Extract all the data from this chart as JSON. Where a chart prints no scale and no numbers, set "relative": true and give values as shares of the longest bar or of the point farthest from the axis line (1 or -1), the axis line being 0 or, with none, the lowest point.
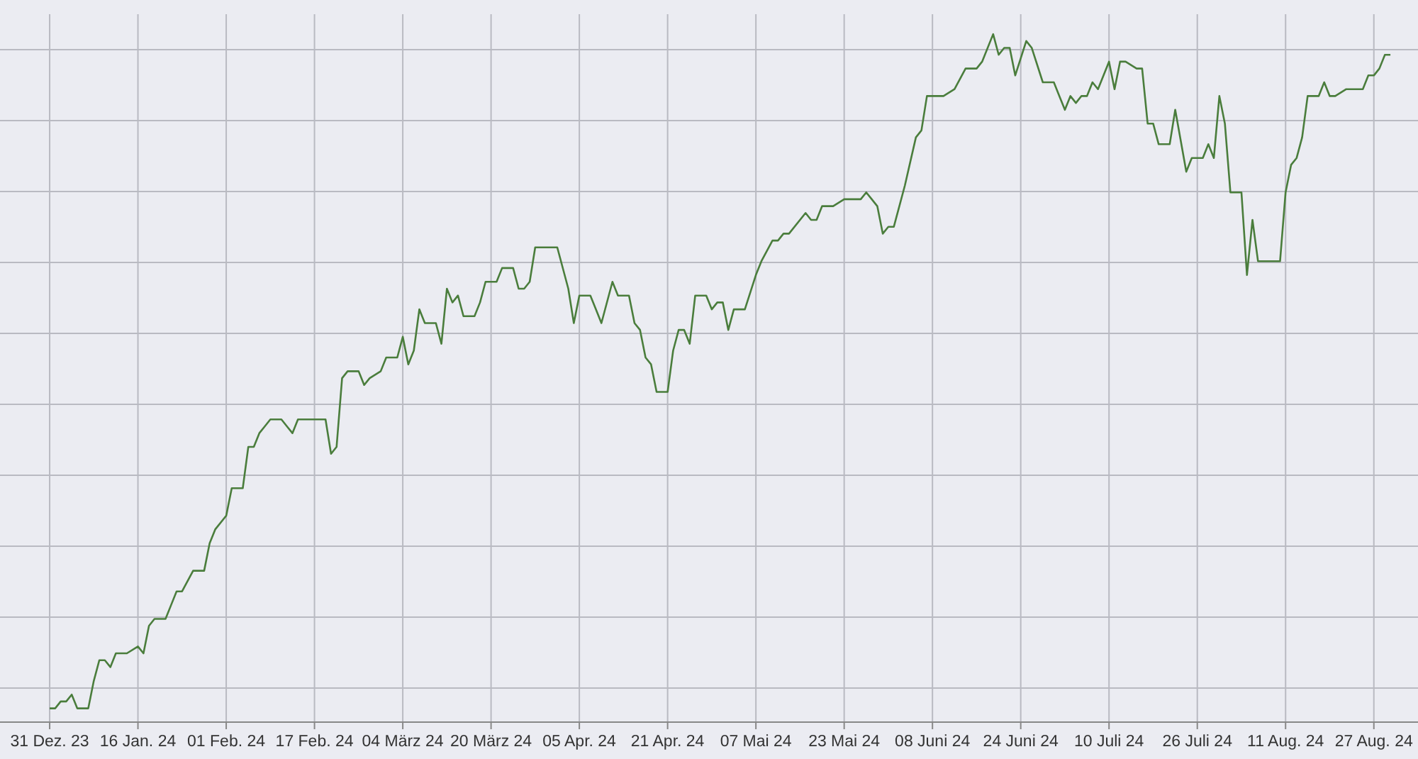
{
  "chart_data": {
    "type": "line",
    "relative": true,
    "grid": true,
    "marker": "none",
    "line_style": "solid",
    "xlim": [
      "2023-12-22",
      "2024-09-04"
    ],
    "xticks": [
      {
        "value": "2023-12-31",
        "label": "31 Dez. 23"
      },
      {
        "value": "2024-01-16",
        "label": "16 Jan. 24"
      },
      {
        "value": "2024-02-01",
        "label": "01 Feb. 24"
      },
      {
        "value": "2024-02-17",
        "label": "17 Feb. 24"
      },
      {
        "value": "2024-03-04",
        "label": "04 März 24"
      },
      {
        "value": "2024-03-20",
        "label": "20 März 24"
      },
      {
        "value": "2024-04-05",
        "label": "05 Apr. 24"
      },
      {
        "value": "2024-04-21",
        "label": "21 Apr. 24"
      },
      {
        "value": "2024-05-07",
        "label": "07 Mai 24"
      },
      {
        "value": "2024-05-23",
        "label": "23 Mai 24"
      },
      {
        "value": "2024-06-08",
        "label": "08 Juni 24"
      },
      {
        "value": "2024-06-24",
        "label": "24 Juni 24"
      },
      {
        "value": "2024-07-10",
        "label": "10 Juli 24"
      },
      {
        "value": "2024-07-26",
        "label": "26 Juli 24"
      },
      {
        "value": "2024-08-11",
        "label": "11 Aug. 24"
      },
      {
        "value": "2024-08-27",
        "label": "27 Aug. 24"
      }
    ],
    "x": [
      "2023-12-31",
      "2024-01-01",
      "2024-01-02",
      "2024-01-03",
      "2024-01-04",
      "2024-01-05",
      "2024-01-07",
      "2024-01-08",
      "2024-01-09",
      "2024-01-10",
      "2024-01-11",
      "2024-01-12",
      "2024-01-14",
      "2024-01-16",
      "2024-01-17",
      "2024-01-18",
      "2024-01-19",
      "2024-01-21",
      "2024-01-22",
      "2024-01-23",
      "2024-01-24",
      "2024-01-26",
      "2024-01-28",
      "2024-01-29",
      "2024-01-30",
      "2024-02-01",
      "2024-02-02",
      "2024-02-04",
      "2024-02-05",
      "2024-02-06",
      "2024-02-07",
      "2024-02-08",
      "2024-02-09",
      "2024-02-11",
      "2024-02-12",
      "2024-02-13",
      "2024-02-14",
      "2024-02-15",
      "2024-02-16",
      "2024-02-19",
      "2024-02-20",
      "2024-02-21",
      "2024-02-22",
      "2024-02-23",
      "2024-02-25",
      "2024-02-26",
      "2024-02-27",
      "2024-02-29",
      "2024-03-01",
      "2024-03-03",
      "2024-03-04",
      "2024-03-05",
      "2024-03-06",
      "2024-03-07",
      "2024-03-08",
      "2024-03-10",
      "2024-03-11",
      "2024-03-12",
      "2024-03-13",
      "2024-03-14",
      "2024-03-15",
      "2024-03-17",
      "2024-03-18",
      "2024-03-19",
      "2024-03-21",
      "2024-03-22",
      "2024-03-24",
      "2024-03-25",
      "2024-03-26",
      "2024-03-27",
      "2024-03-28",
      "2024-04-01",
      "2024-04-03",
      "2024-04-04",
      "2024-04-05",
      "2024-04-07",
      "2024-04-08",
      "2024-04-09",
      "2024-04-11",
      "2024-04-12",
      "2024-04-14",
      "2024-04-15",
      "2024-04-16",
      "2024-04-17",
      "2024-04-18",
      "2024-04-19",
      "2024-04-21",
      "2024-04-22",
      "2024-04-23",
      "2024-04-24",
      "2024-04-25",
      "2024-04-26",
      "2024-04-28",
      "2024-04-29",
      "2024-04-30",
      "2024-05-01",
      "2024-05-02",
      "2024-05-03",
      "2024-05-05",
      "2024-05-07",
      "2024-05-08",
      "2024-05-10",
      "2024-05-11",
      "2024-05-12",
      "2024-05-13",
      "2024-05-16",
      "2024-05-17",
      "2024-05-18",
      "2024-05-19",
      "2024-05-21",
      "2024-05-23",
      "2024-05-24",
      "2024-05-26",
      "2024-05-27",
      "2024-05-28",
      "2024-05-29",
      "2024-05-30",
      "2024-05-31",
      "2024-06-01",
      "2024-06-03",
      "2024-06-05",
      "2024-06-06",
      "2024-06-07",
      "2024-06-10",
      "2024-06-12",
      "2024-06-14",
      "2024-06-16",
      "2024-06-17",
      "2024-06-19",
      "2024-06-20",
      "2024-06-21",
      "2024-06-22",
      "2024-06-23",
      "2024-06-25",
      "2024-06-26",
      "2024-06-28",
      "2024-06-30",
      "2024-07-01",
      "2024-07-02",
      "2024-07-03",
      "2024-07-04",
      "2024-07-05",
      "2024-07-06",
      "2024-07-07",
      "2024-07-08",
      "2024-07-10",
      "2024-07-11",
      "2024-07-12",
      "2024-07-13",
      "2024-07-15",
      "2024-07-16",
      "2024-07-17",
      "2024-07-18",
      "2024-07-19",
      "2024-07-21",
      "2024-07-22",
      "2024-07-24",
      "2024-07-25",
      "2024-07-27",
      "2024-07-28",
      "2024-07-29",
      "2024-07-30",
      "2024-07-31",
      "2024-08-01",
      "2024-08-03",
      "2024-08-04",
      "2024-08-05",
      "2024-08-06",
      "2024-08-10",
      "2024-08-11",
      "2024-08-12",
      "2024-08-13",
      "2024-08-14",
      "2024-08-15",
      "2024-08-17",
      "2024-08-18",
      "2024-08-19",
      "2024-08-20",
      "2024-08-22",
      "2024-08-23",
      "2024-08-25",
      "2024-08-26",
      "2024-08-27",
      "2024-08-28",
      "2024-08-29",
      "2024-08-30"
    ],
    "series": [
      {
        "color": "#4a7d3c",
        "values": [
          0.02,
          0.02,
          0.03,
          0.03,
          0.04,
          0.02,
          0.02,
          0.06,
          0.09,
          0.09,
          0.08,
          0.1,
          0.1,
          0.11,
          0.1,
          0.14,
          0.15,
          0.15,
          0.17,
          0.19,
          0.19,
          0.22,
          0.22,
          0.26,
          0.28,
          0.3,
          0.34,
          0.34,
          0.4,
          0.4,
          0.42,
          0.43,
          0.44,
          0.44,
          0.43,
          0.42,
          0.44,
          0.44,
          0.44,
          0.44,
          0.39,
          0.4,
          0.5,
          0.51,
          0.51,
          0.49,
          0.5,
          0.51,
          0.53,
          0.53,
          0.56,
          0.52,
          0.54,
          0.6,
          0.58,
          0.58,
          0.55,
          0.63,
          0.61,
          0.62,
          0.59,
          0.59,
          0.61,
          0.64,
          0.64,
          0.66,
          0.66,
          0.63,
          0.63,
          0.64,
          0.69,
          0.69,
          0.63,
          0.58,
          0.62,
          0.62,
          0.6,
          0.58,
          0.64,
          0.62,
          0.62,
          0.58,
          0.57,
          0.53,
          0.52,
          0.48,
          0.48,
          0.54,
          0.57,
          0.57,
          0.55,
          0.62,
          0.62,
          0.6,
          0.61,
          0.61,
          0.57,
          0.6,
          0.6,
          0.65,
          0.67,
          0.7,
          0.7,
          0.71,
          0.71,
          0.74,
          0.73,
          0.73,
          0.75,
          0.75,
          0.76,
          0.76,
          0.76,
          0.77,
          0.76,
          0.75,
          0.71,
          0.72,
          0.72,
          0.78,
          0.85,
          0.86,
          0.91,
          0.91,
          0.92,
          0.95,
          0.95,
          0.96,
          1,
          0.97,
          0.98,
          0.98,
          0.94,
          0.99,
          0.98,
          0.93,
          0.93,
          0.91,
          0.89,
          0.91,
          0.9,
          0.91,
          0.91,
          0.93,
          0.92,
          0.96,
          0.92,
          0.96,
          0.96,
          0.95,
          0.95,
          0.87,
          0.87,
          0.84,
          0.84,
          0.89,
          0.8,
          0.82,
          0.82,
          0.84,
          0.82,
          0.91,
          0.87,
          0.77,
          0.77,
          0.65,
          0.73,
          0.67,
          0.67,
          0.77,
          0.81,
          0.82,
          0.85,
          0.91,
          0.91,
          0.93,
          0.91,
          0.91,
          0.92,
          0.92,
          0.92,
          0.94,
          0.94,
          0.95,
          0.97,
          0.97
        ]
      }
    ]
  }
}
